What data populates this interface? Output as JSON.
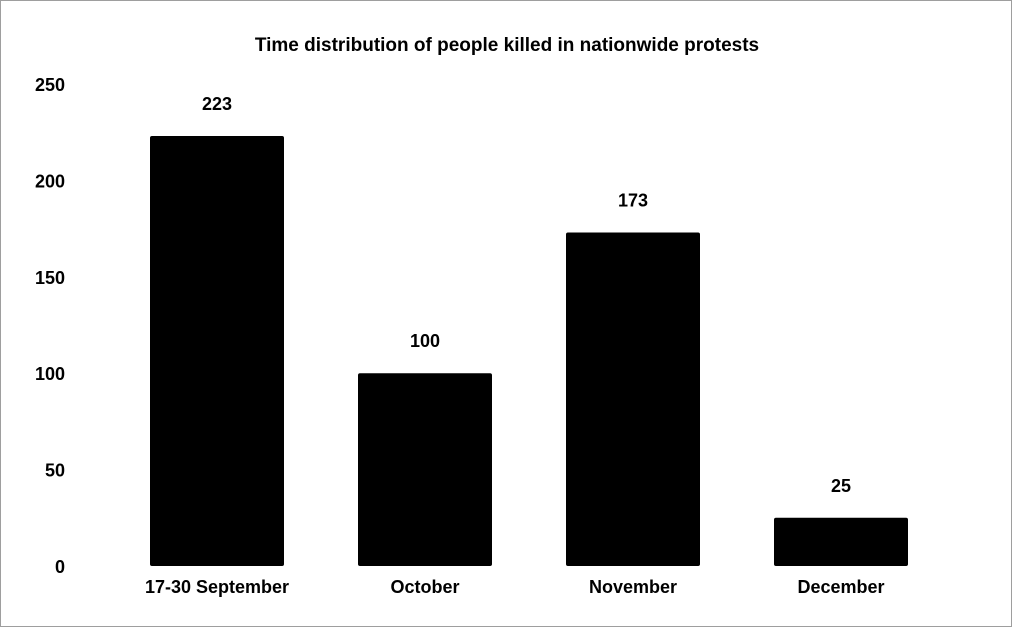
{
  "chart_data": {
    "type": "bar",
    "title": "Time distribution of people killed in nationwide protests",
    "categories": [
      "17-30 September",
      "October",
      "November",
      "December"
    ],
    "values": [
      223,
      100,
      173,
      25
    ],
    "data_labels": [
      "223",
      "100",
      "173",
      "25"
    ],
    "y_ticks": [
      "0",
      "50",
      "100",
      "150",
      "200",
      "250"
    ],
    "ylim": [
      0,
      250
    ],
    "xlabel": "",
    "ylabel": "",
    "grid": false,
    "legend": "none",
    "bar_color": "#000000"
  }
}
